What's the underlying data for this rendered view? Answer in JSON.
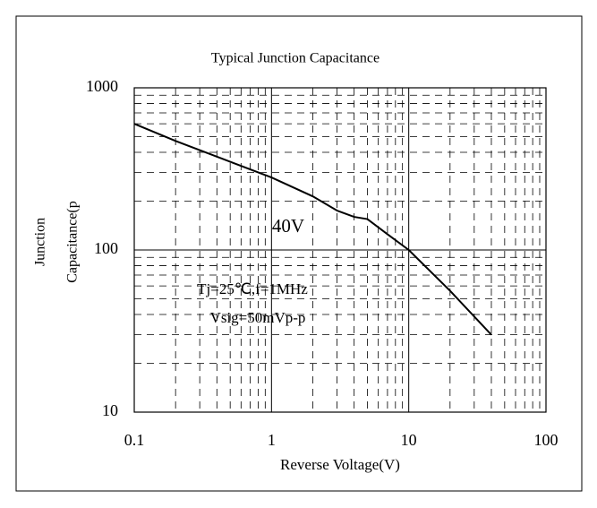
{
  "chart_data": {
    "type": "line",
    "title": "Typical Junction Capacitance",
    "ylabel": [
      "Junction",
      "Capacitance(p"
    ],
    "xlabel": "Reverse Voltage(V)",
    "annotations": [
      "40V",
      "Tj=25℃,f=1MHz",
      "Vsig=50mVp-p"
    ],
    "x": [
      0.1,
      0.2,
      0.5,
      1,
      2,
      3,
      4,
      5,
      7,
      10,
      20,
      40
    ],
    "series": [
      {
        "name": "Junction Capacitance",
        "color": "#000000",
        "values": [
          600,
          470,
          350,
          280,
          214,
          175,
          160,
          155,
          125,
          100,
          56,
          30
        ]
      }
    ],
    "xlim": [
      0.1,
      100
    ],
    "ylim": [
      10,
      1000
    ],
    "xticks": [
      0.1,
      1,
      10,
      100
    ],
    "yticks": [
      10,
      100,
      1000
    ],
    "xscale": "log",
    "yscale": "log",
    "grid": true
  }
}
